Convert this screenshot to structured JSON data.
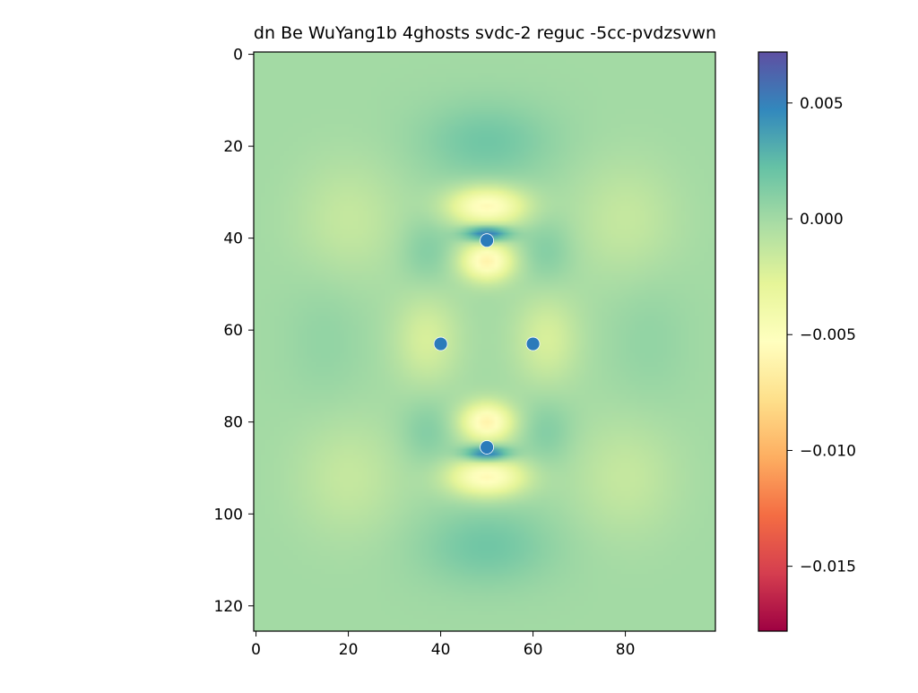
{
  "chart_data": {
    "type": "heatmap",
    "title": "dn Be WuYang1b 4ghosts svdc-2 reguc -5cc-pvdzsvwn",
    "xlabel": "",
    "ylabel": "",
    "xlim": [
      -0.5,
      99.5
    ],
    "ylim": [
      125.5,
      -0.5
    ],
    "x_ticks": [
      0,
      20,
      40,
      60,
      80
    ],
    "x_tick_labels": [
      "0",
      "20",
      "40",
      "60",
      "80"
    ],
    "y_ticks": [
      0,
      20,
      40,
      60,
      80,
      100,
      120
    ],
    "y_tick_labels": [
      "0",
      "20",
      "40",
      "60",
      "80",
      "100",
      "120"
    ],
    "colormap": "Spectral",
    "colorbar": {
      "vmin": -0.0178,
      "vmax": 0.0072,
      "ticks": [
        0.005,
        0.0,
        -0.005,
        -0.01,
        -0.015
      ],
      "tick_labels": [
        "0.005",
        "0.000",
        "−0.005",
        "−0.010",
        "−0.015"
      ]
    },
    "points": [
      {
        "x": 50,
        "y": 40.5
      },
      {
        "x": 40,
        "y": 63
      },
      {
        "x": 60,
        "y": 63
      },
      {
        "x": 50,
        "y": 85.5
      }
    ],
    "point_color": "#2b7bba",
    "features": [
      {
        "x": 50,
        "y": 19,
        "value": 0.0018,
        "sx": 10,
        "sy": 6
      },
      {
        "x": 50,
        "y": 107,
        "value": 0.0018,
        "sx": 10,
        "sy": 6
      },
      {
        "x": 50,
        "y": 33,
        "value": -0.0058,
        "sx": 6,
        "sy": 3
      },
      {
        "x": 50,
        "y": 92,
        "value": -0.0058,
        "sx": 6,
        "sy": 3
      },
      {
        "x": 50,
        "y": 45,
        "value": -0.0062,
        "sx": 4,
        "sy": 3
      },
      {
        "x": 50,
        "y": 80,
        "value": -0.0062,
        "sx": 4,
        "sy": 3
      },
      {
        "x": 50,
        "y": 39,
        "value": 0.0068,
        "sx": 3.5,
        "sy": 1.2
      },
      {
        "x": 50,
        "y": 86.8,
        "value": 0.0068,
        "sx": 3.5,
        "sy": 1.2
      },
      {
        "x": 37,
        "y": 43,
        "value": 0.0012,
        "sx": 4,
        "sy": 5
      },
      {
        "x": 63,
        "y": 43,
        "value": 0.0012,
        "sx": 4,
        "sy": 5
      },
      {
        "x": 37,
        "y": 82,
        "value": 0.0012,
        "sx": 4,
        "sy": 5
      },
      {
        "x": 63,
        "y": 82,
        "value": 0.0012,
        "sx": 4,
        "sy": 5
      },
      {
        "x": 37,
        "y": 62,
        "value": -0.0022,
        "sx": 5,
        "sy": 7
      },
      {
        "x": 63,
        "y": 62,
        "value": -0.0022,
        "sx": 5,
        "sy": 7
      },
      {
        "x": 20,
        "y": 36,
        "value": -0.0014,
        "sx": 8,
        "sy": 9
      },
      {
        "x": 80,
        "y": 36,
        "value": -0.0014,
        "sx": 8,
        "sy": 9
      },
      {
        "x": 20,
        "y": 92,
        "value": -0.0014,
        "sx": 8,
        "sy": 9
      },
      {
        "x": 80,
        "y": 92,
        "value": -0.0014,
        "sx": 8,
        "sy": 9
      },
      {
        "x": 15,
        "y": 62,
        "value": 0.0006,
        "sx": 6,
        "sy": 10
      },
      {
        "x": 85,
        "y": 62,
        "value": 0.0006,
        "sx": 6,
        "sy": 10
      }
    ]
  }
}
